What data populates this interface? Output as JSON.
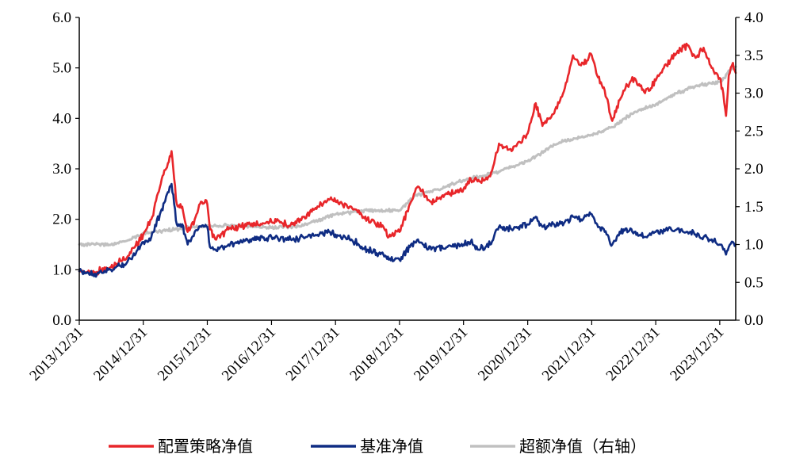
{
  "chart_data": {
    "type": "line",
    "title": "",
    "xlabel": "",
    "ylabel": "",
    "y2label": "",
    "left_axis": {
      "range": [
        0,
        6
      ],
      "ticks": [
        "0.0",
        "1.0",
        "2.0",
        "3.0",
        "4.0",
        "5.0",
        "6.0"
      ]
    },
    "right_axis": {
      "range": [
        0,
        4
      ],
      "ticks": [
        "0.0",
        "0.5",
        "1.0",
        "1.5",
        "2.0",
        "2.5",
        "3.0",
        "3.5",
        "4.0"
      ]
    },
    "x_range": [
      "2013-12-31",
      "2024-03-31"
    ],
    "x_tick_labels": [
      "2013/12/31",
      "2014/12/31",
      "2015/12/31",
      "2016/12/31",
      "2017/12/31",
      "2018/12/31",
      "2019/12/31",
      "2020/12/31",
      "2021/12/31",
      "2022/12/31",
      "2023/12/31"
    ],
    "x_tick_dates": [
      "2013-12-31",
      "2014-12-31",
      "2015-12-31",
      "2016-12-31",
      "2017-12-31",
      "2018-12-31",
      "2019-12-31",
      "2020-12-31",
      "2021-12-31",
      "2022-12-31",
      "2023-12-31"
    ],
    "grid": false,
    "legend_position": "bottom",
    "series": [
      {
        "name": "配置策略净值",
        "axis": "left",
        "color": "#e8262a",
        "points": [
          [
            "2013-12-31",
            0.97
          ],
          [
            "2014-03-31",
            0.95
          ],
          [
            "2014-06-30",
            1.05
          ],
          [
            "2014-09-30",
            1.25
          ],
          [
            "2014-12-31",
            1.7
          ],
          [
            "2015-02-15",
            2.0
          ],
          [
            "2015-04-15",
            2.8
          ],
          [
            "2015-05-10",
            3.0
          ],
          [
            "2015-06-10",
            3.35
          ],
          [
            "2015-06-25",
            2.8
          ],
          [
            "2015-07-10",
            2.3
          ],
          [
            "2015-08-10",
            2.25
          ],
          [
            "2015-09-10",
            1.75
          ],
          [
            "2015-10-20",
            2.0
          ],
          [
            "2015-11-25",
            2.35
          ],
          [
            "2015-12-31",
            2.3
          ],
          [
            "2016-01-15",
            1.8
          ],
          [
            "2016-02-15",
            1.6
          ],
          [
            "2016-04-30",
            1.8
          ],
          [
            "2016-08-31",
            1.9
          ],
          [
            "2016-12-31",
            1.95
          ],
          [
            "2017-04-30",
            1.9
          ],
          [
            "2017-06-30",
            2.05
          ],
          [
            "2017-09-30",
            2.25
          ],
          [
            "2017-11-30",
            2.4
          ],
          [
            "2017-12-31",
            2.35
          ],
          [
            "2018-03-31",
            2.25
          ],
          [
            "2018-06-30",
            2.0
          ],
          [
            "2018-09-30",
            1.85
          ],
          [
            "2018-10-31",
            1.65
          ],
          [
            "2018-12-31",
            1.75
          ],
          [
            "2019-02-28",
            2.3
          ],
          [
            "2019-04-15",
            2.65
          ],
          [
            "2019-06-30",
            2.35
          ],
          [
            "2019-09-30",
            2.5
          ],
          [
            "2019-12-31",
            2.6
          ],
          [
            "2020-02-10",
            2.8
          ],
          [
            "2020-03-20",
            2.75
          ],
          [
            "2020-05-31",
            2.85
          ],
          [
            "2020-07-20",
            3.5
          ],
          [
            "2020-09-30",
            3.35
          ],
          [
            "2020-12-31",
            3.7
          ],
          [
            "2021-02-15",
            4.3
          ],
          [
            "2021-03-25",
            3.85
          ],
          [
            "2021-05-31",
            4.1
          ],
          [
            "2021-07-31",
            4.6
          ],
          [
            "2021-09-15",
            5.25
          ],
          [
            "2021-10-31",
            5.05
          ],
          [
            "2021-12-31",
            5.25
          ],
          [
            "2022-01-31",
            4.85
          ],
          [
            "2022-03-15",
            4.55
          ],
          [
            "2022-04-27",
            3.95
          ],
          [
            "2022-06-30",
            4.55
          ],
          [
            "2022-08-31",
            4.8
          ],
          [
            "2022-10-31",
            4.5
          ],
          [
            "2022-12-31",
            4.75
          ],
          [
            "2023-02-15",
            5.0
          ],
          [
            "2023-04-30",
            5.3
          ],
          [
            "2023-06-30",
            5.45
          ],
          [
            "2023-08-15",
            5.2
          ],
          [
            "2023-09-30",
            5.4
          ],
          [
            "2023-11-15",
            5.0
          ],
          [
            "2023-12-31",
            4.8
          ],
          [
            "2024-01-20",
            4.5
          ],
          [
            "2024-02-05",
            4.05
          ],
          [
            "2024-02-20",
            4.85
          ],
          [
            "2024-03-15",
            5.1
          ],
          [
            "2024-03-31",
            4.9
          ]
        ]
      },
      {
        "name": "基准净值",
        "axis": "left",
        "color": "#0f2c83",
        "points": [
          [
            "2013-12-31",
            0.97
          ],
          [
            "2014-03-31",
            0.92
          ],
          [
            "2014-06-30",
            1.0
          ],
          [
            "2014-09-30",
            1.15
          ],
          [
            "2014-12-31",
            1.55
          ],
          [
            "2015-02-15",
            1.65
          ],
          [
            "2015-04-15",
            2.2
          ],
          [
            "2015-05-10",
            2.45
          ],
          [
            "2015-06-10",
            2.7
          ],
          [
            "2015-06-25",
            2.3
          ],
          [
            "2015-07-10",
            1.9
          ],
          [
            "2015-08-10",
            1.9
          ],
          [
            "2015-09-10",
            1.5
          ],
          [
            "2015-10-20",
            1.75
          ],
          [
            "2015-11-25",
            1.85
          ],
          [
            "2015-12-31",
            1.85
          ],
          [
            "2016-01-15",
            1.45
          ],
          [
            "2016-02-15",
            1.4
          ],
          [
            "2016-04-30",
            1.5
          ],
          [
            "2016-08-31",
            1.6
          ],
          [
            "2016-12-31",
            1.65
          ],
          [
            "2017-04-30",
            1.6
          ],
          [
            "2017-06-30",
            1.65
          ],
          [
            "2017-09-30",
            1.7
          ],
          [
            "2017-11-30",
            1.75
          ],
          [
            "2017-12-31",
            1.7
          ],
          [
            "2018-03-31",
            1.6
          ],
          [
            "2018-06-30",
            1.4
          ],
          [
            "2018-09-30",
            1.3
          ],
          [
            "2018-10-31",
            1.2
          ],
          [
            "2018-12-31",
            1.2
          ],
          [
            "2019-02-28",
            1.45
          ],
          [
            "2019-04-15",
            1.6
          ],
          [
            "2019-06-30",
            1.4
          ],
          [
            "2019-09-30",
            1.45
          ],
          [
            "2019-12-31",
            1.5
          ],
          [
            "2020-02-10",
            1.55
          ],
          [
            "2020-03-20",
            1.4
          ],
          [
            "2020-05-31",
            1.5
          ],
          [
            "2020-07-20",
            1.85
          ],
          [
            "2020-09-30",
            1.8
          ],
          [
            "2020-12-31",
            1.9
          ],
          [
            "2021-02-15",
            2.05
          ],
          [
            "2021-03-25",
            1.85
          ],
          [
            "2021-05-31",
            1.9
          ],
          [
            "2021-07-31",
            1.95
          ],
          [
            "2021-09-15",
            2.05
          ],
          [
            "2021-10-31",
            2.0
          ],
          [
            "2021-12-31",
            2.1
          ],
          [
            "2022-01-31",
            1.9
          ],
          [
            "2022-03-15",
            1.75
          ],
          [
            "2022-04-27",
            1.5
          ],
          [
            "2022-06-30",
            1.8
          ],
          [
            "2022-08-31",
            1.75
          ],
          [
            "2022-10-31",
            1.65
          ],
          [
            "2022-12-31",
            1.75
          ],
          [
            "2023-02-15",
            1.8
          ],
          [
            "2023-04-30",
            1.8
          ],
          [
            "2023-06-30",
            1.75
          ],
          [
            "2023-08-15",
            1.7
          ],
          [
            "2023-09-30",
            1.65
          ],
          [
            "2023-11-15",
            1.6
          ],
          [
            "2023-12-31",
            1.5
          ],
          [
            "2024-01-20",
            1.4
          ],
          [
            "2024-02-05",
            1.3
          ],
          [
            "2024-02-20",
            1.45
          ],
          [
            "2024-03-15",
            1.55
          ],
          [
            "2024-03-31",
            1.5
          ]
        ]
      },
      {
        "name": "超额净值（右轴）",
        "axis": "right",
        "color": "#c0c0c0",
        "points": [
          [
            "2013-12-31",
            1.0
          ],
          [
            "2014-06-30",
            1.0
          ],
          [
            "2014-09-30",
            1.05
          ],
          [
            "2014-12-31",
            1.15
          ],
          [
            "2015-06-30",
            1.2
          ],
          [
            "2015-12-31",
            1.25
          ],
          [
            "2016-06-30",
            1.25
          ],
          [
            "2016-12-31",
            1.22
          ],
          [
            "2017-06-30",
            1.25
          ],
          [
            "2017-12-31",
            1.4
          ],
          [
            "2018-06-30",
            1.45
          ],
          [
            "2018-12-31",
            1.45
          ],
          [
            "2019-03-31",
            1.65
          ],
          [
            "2019-06-30",
            1.7
          ],
          [
            "2019-12-31",
            1.85
          ],
          [
            "2020-03-31",
            1.9
          ],
          [
            "2020-06-30",
            1.95
          ],
          [
            "2020-12-31",
            2.1
          ],
          [
            "2021-06-30",
            2.35
          ],
          [
            "2021-12-31",
            2.45
          ],
          [
            "2022-04-30",
            2.55
          ],
          [
            "2022-08-31",
            2.75
          ],
          [
            "2022-12-31",
            2.85
          ],
          [
            "2023-04-30",
            3.0
          ],
          [
            "2023-08-31",
            3.1
          ],
          [
            "2023-12-31",
            3.15
          ],
          [
            "2024-01-31",
            3.2
          ],
          [
            "2024-02-20",
            3.3
          ],
          [
            "2024-03-31",
            3.35
          ]
        ]
      }
    ]
  }
}
